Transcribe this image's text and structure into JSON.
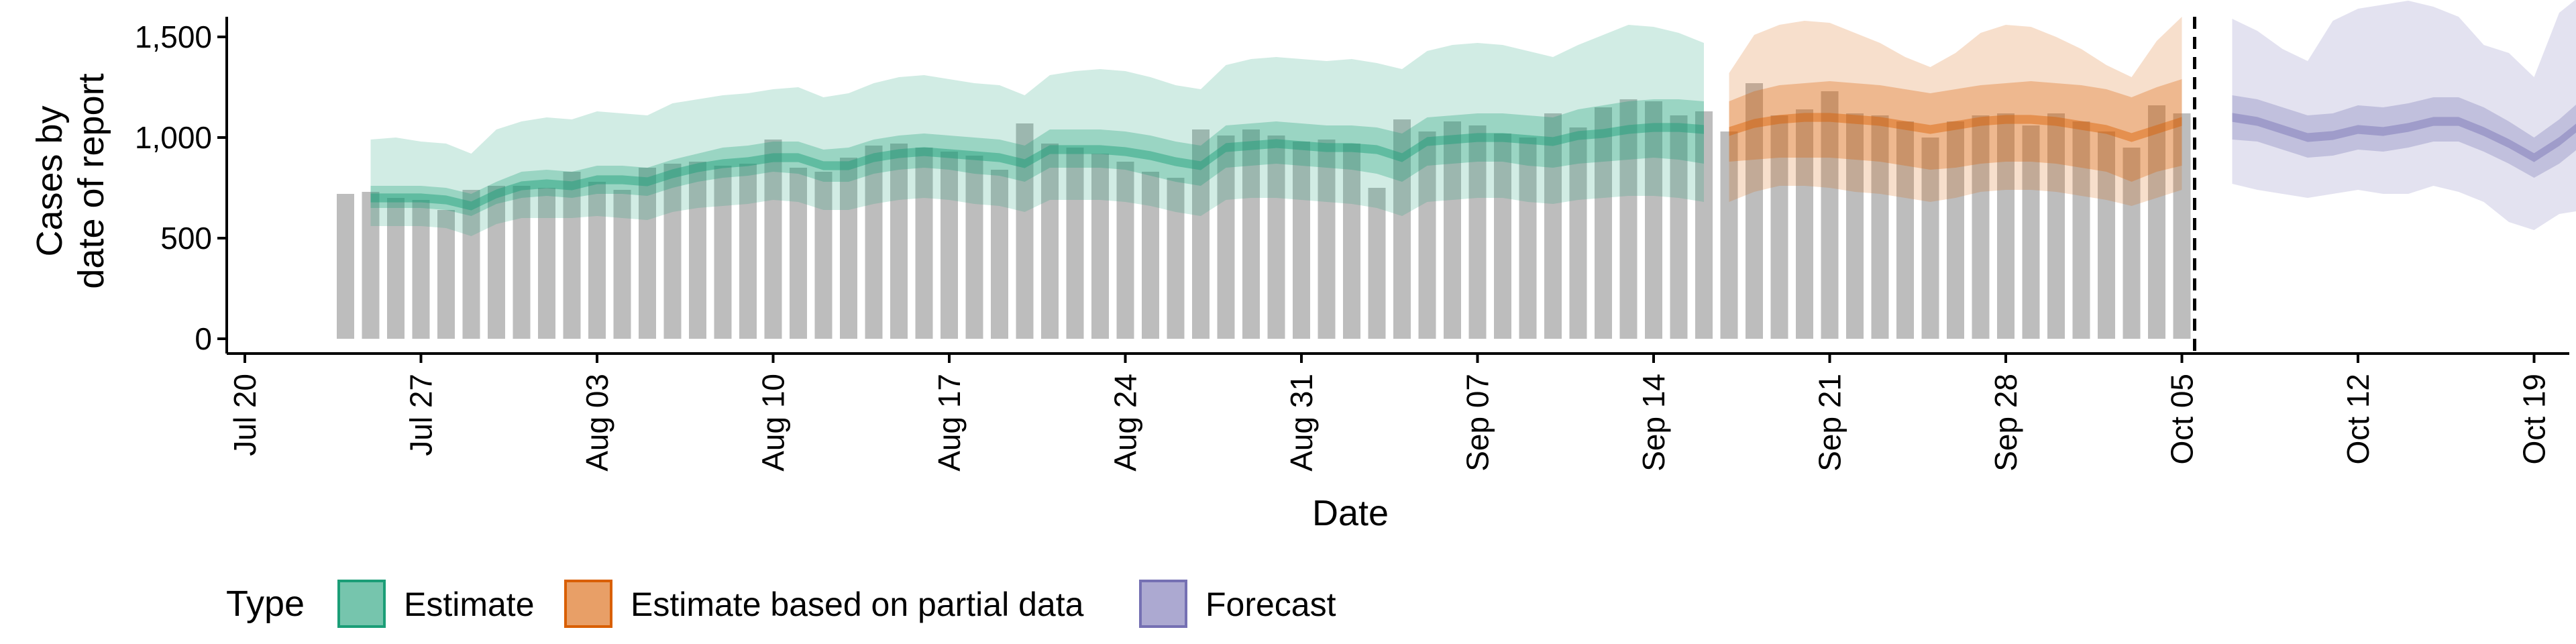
{
  "chart_data": {
    "type": "bar",
    "title": "",
    "xlabel": "Date",
    "ylabel_lines": [
      "Cases by",
      "date of report"
    ],
    "ylim": [
      0,
      1800
    ],
    "y_ticks": [
      0,
      500,
      1000,
      1500
    ],
    "y_tick_labels": [
      "0",
      "500",
      "1,000",
      "1,500"
    ],
    "x_start": "2020-07-24",
    "x_ticks": [
      "Jul 20",
      "Jul 27",
      "Aug 03",
      "Aug 10",
      "Aug 17",
      "Aug 24",
      "Aug 31",
      "Sep 07",
      "Sep 14",
      "Sep 21",
      "Sep 28",
      "Oct 05",
      "Oct 12",
      "Oct 19"
    ],
    "legend_title": "Type",
    "legend_position": "bottom",
    "legend": [
      {
        "key": "estimate",
        "label": "Estimate",
        "color": "#1b9e77"
      },
      {
        "key": "partial",
        "label": "Estimate based on partial data",
        "color": "#d95f02"
      },
      {
        "key": "forecast",
        "label": "Forecast",
        "color": "#7570b3"
      }
    ],
    "report_cutoff_date": "Oct 02",
    "bars": [
      720,
      730,
      700,
      690,
      640,
      740,
      760,
      760,
      750,
      830,
      780,
      740,
      850,
      870,
      880,
      860,
      870,
      990,
      850,
      830,
      900,
      960,
      970,
      950,
      930,
      910,
      840,
      1070,
      970,
      950,
      920,
      880,
      830,
      800,
      1040,
      1010,
      1040,
      1010,
      980,
      990,
      970,
      750,
      1090,
      1030,
      1080,
      1060,
      1020,
      1000,
      1120,
      1050,
      1150,
      1190,
      1180,
      1110,
      1130,
      1030,
      1270,
      1110,
      1140,
      1230,
      1120,
      1110,
      1080,
      1000,
      1080,
      1110,
      1120,
      1060,
      1120,
      1080,
      1030,
      950,
      1160,
      1120
    ],
    "estimate": {
      "start": 1,
      "median": [
        700,
        700,
        700,
        690,
        660,
        720,
        760,
        770,
        760,
        790,
        790,
        780,
        820,
        850,
        870,
        880,
        900,
        900,
        860,
        860,
        900,
        920,
        930,
        920,
        910,
        900,
        870,
        940,
        940,
        940,
        930,
        910,
        880,
        860,
        950,
        960,
        970,
        960,
        950,
        950,
        940,
        900,
        980,
        990,
        1000,
        1000,
        990,
        980,
        1010,
        1020,
        1040,
        1050,
        1050,
        1040
      ],
      "ci50": [
        [
          650,
          760
        ],
        [
          650,
          760
        ],
        [
          650,
          760
        ],
        [
          640,
          750
        ],
        [
          610,
          720
        ],
        [
          670,
          780
        ],
        [
          700,
          830
        ],
        [
          710,
          840
        ],
        [
          700,
          830
        ],
        [
          720,
          860
        ],
        [
          720,
          860
        ],
        [
          710,
          850
        ],
        [
          750,
          890
        ],
        [
          780,
          920
        ],
        [
          800,
          950
        ],
        [
          810,
          960
        ],
        [
          830,
          980
        ],
        [
          820,
          980
        ],
        [
          780,
          940
        ],
        [
          780,
          950
        ],
        [
          820,
          990
        ],
        [
          840,
          1010
        ],
        [
          850,
          1020
        ],
        [
          840,
          1010
        ],
        [
          820,
          1000
        ],
        [
          810,
          990
        ],
        [
          780,
          960
        ],
        [
          850,
          1040
        ],
        [
          850,
          1040
        ],
        [
          850,
          1040
        ],
        [
          840,
          1030
        ],
        [
          810,
          1010
        ],
        [
          780,
          980
        ],
        [
          760,
          960
        ],
        [
          850,
          1060
        ],
        [
          860,
          1070
        ],
        [
          870,
          1080
        ],
        [
          860,
          1070
        ],
        [
          850,
          1060
        ],
        [
          840,
          1060
        ],
        [
          820,
          1050
        ],
        [
          780,
          1020
        ],
        [
          860,
          1100
        ],
        [
          870,
          1110
        ],
        [
          880,
          1120
        ],
        [
          880,
          1120
        ],
        [
          860,
          1110
        ],
        [
          850,
          1100
        ],
        [
          870,
          1140
        ],
        [
          880,
          1160
        ],
        [
          890,
          1180
        ],
        [
          900,
          1190
        ],
        [
          890,
          1190
        ],
        [
          870,
          1180
        ]
      ],
      "ci90": [
        [
          560,
          990
        ],
        [
          560,
          1000
        ],
        [
          560,
          980
        ],
        [
          550,
          970
        ],
        [
          510,
          920
        ],
        [
          570,
          1040
        ],
        [
          600,
          1080
        ],
        [
          600,
          1100
        ],
        [
          600,
          1090
        ],
        [
          610,
          1130
        ],
        [
          600,
          1120
        ],
        [
          590,
          1110
        ],
        [
          630,
          1170
        ],
        [
          650,
          1190
        ],
        [
          660,
          1210
        ],
        [
          670,
          1220
        ],
        [
          690,
          1240
        ],
        [
          680,
          1250
        ],
        [
          640,
          1200
        ],
        [
          640,
          1220
        ],
        [
          670,
          1270
        ],
        [
          690,
          1300
        ],
        [
          700,
          1310
        ],
        [
          690,
          1290
        ],
        [
          670,
          1270
        ],
        [
          660,
          1260
        ],
        [
          630,
          1210
        ],
        [
          690,
          1310
        ],
        [
          690,
          1330
        ],
        [
          690,
          1340
        ],
        [
          680,
          1330
        ],
        [
          660,
          1300
        ],
        [
          630,
          1260
        ],
        [
          610,
          1240
        ],
        [
          690,
          1360
        ],
        [
          700,
          1390
        ],
        [
          700,
          1400
        ],
        [
          690,
          1390
        ],
        [
          680,
          1380
        ],
        [
          670,
          1390
        ],
        [
          650,
          1370
        ],
        [
          610,
          1340
        ],
        [
          680,
          1430
        ],
        [
          690,
          1460
        ],
        [
          700,
          1470
        ],
        [
          700,
          1460
        ],
        [
          680,
          1430
        ],
        [
          670,
          1400
        ],
        [
          690,
          1460
        ],
        [
          700,
          1510
        ],
        [
          710,
          1560
        ],
        [
          710,
          1550
        ],
        [
          700,
          1520
        ],
        [
          680,
          1470
        ]
      ]
    },
    "partial": {
      "start": 55,
      "median": [
        1030,
        1070,
        1090,
        1100,
        1100,
        1090,
        1080,
        1060,
        1040,
        1060,
        1080,
        1090,
        1090,
        1080,
        1060,
        1040,
        1000,
        1040,
        1080
      ],
      "ci50": [
        [
          880,
          1180
        ],
        [
          890,
          1230
        ],
        [
          900,
          1260
        ],
        [
          900,
          1270
        ],
        [
          900,
          1280
        ],
        [
          890,
          1270
        ],
        [
          880,
          1260
        ],
        [
          860,
          1240
        ],
        [
          840,
          1220
        ],
        [
          850,
          1240
        ],
        [
          870,
          1260
        ],
        [
          880,
          1270
        ],
        [
          880,
          1280
        ],
        [
          870,
          1270
        ],
        [
          850,
          1260
        ],
        [
          830,
          1240
        ],
        [
          780,
          1200
        ],
        [
          830,
          1250
        ],
        [
          860,
          1290
        ]
      ],
      "ci90": [
        [
          680,
          1320
        ],
        [
          730,
          1510
        ],
        [
          760,
          1560
        ],
        [
          760,
          1580
        ],
        [
          750,
          1570
        ],
        [
          730,
          1520
        ],
        [
          720,
          1470
        ],
        [
          700,
          1400
        ],
        [
          680,
          1350
        ],
        [
          700,
          1420
        ],
        [
          730,
          1520
        ],
        [
          740,
          1560
        ],
        [
          740,
          1550
        ],
        [
          730,
          1500
        ],
        [
          710,
          1440
        ],
        [
          690,
          1360
        ],
        [
          660,
          1300
        ],
        [
          700,
          1480
        ],
        [
          740,
          1600
        ]
      ]
    },
    "forecast": {
      "start": 75,
      "median": [
        1100,
        1080,
        1040,
        1000,
        1010,
        1040,
        1030,
        1050,
        1080,
        1080,
        1030,
        970,
        900,
        980,
        1080,
        1060
      ],
      "ci50": [
        [
          990,
          1210
        ],
        [
          980,
          1190
        ],
        [
          940,
          1150
        ],
        [
          900,
          1110
        ],
        [
          910,
          1120
        ],
        [
          940,
          1160
        ],
        [
          930,
          1150
        ],
        [
          950,
          1170
        ],
        [
          980,
          1200
        ],
        [
          980,
          1200
        ],
        [
          930,
          1150
        ],
        [
          870,
          1080
        ],
        [
          800,
          1000
        ],
        [
          870,
          1090
        ],
        [
          970,
          1200
        ],
        [
          950,
          1180
        ]
      ],
      "ci90": [
        [
          770,
          1590
        ],
        [
          740,
          1530
        ],
        [
          720,
          1440
        ],
        [
          700,
          1380
        ],
        [
          720,
          1580
        ],
        [
          740,
          1640
        ],
        [
          720,
          1660
        ],
        [
          720,
          1680
        ],
        [
          760,
          1650
        ],
        [
          730,
          1600
        ],
        [
          680,
          1460
        ],
        [
          580,
          1420
        ],
        [
          540,
          1300
        ],
        [
          620,
          1620
        ],
        [
          640,
          1720
        ],
        [
          640,
          1730
        ]
      ]
    }
  }
}
